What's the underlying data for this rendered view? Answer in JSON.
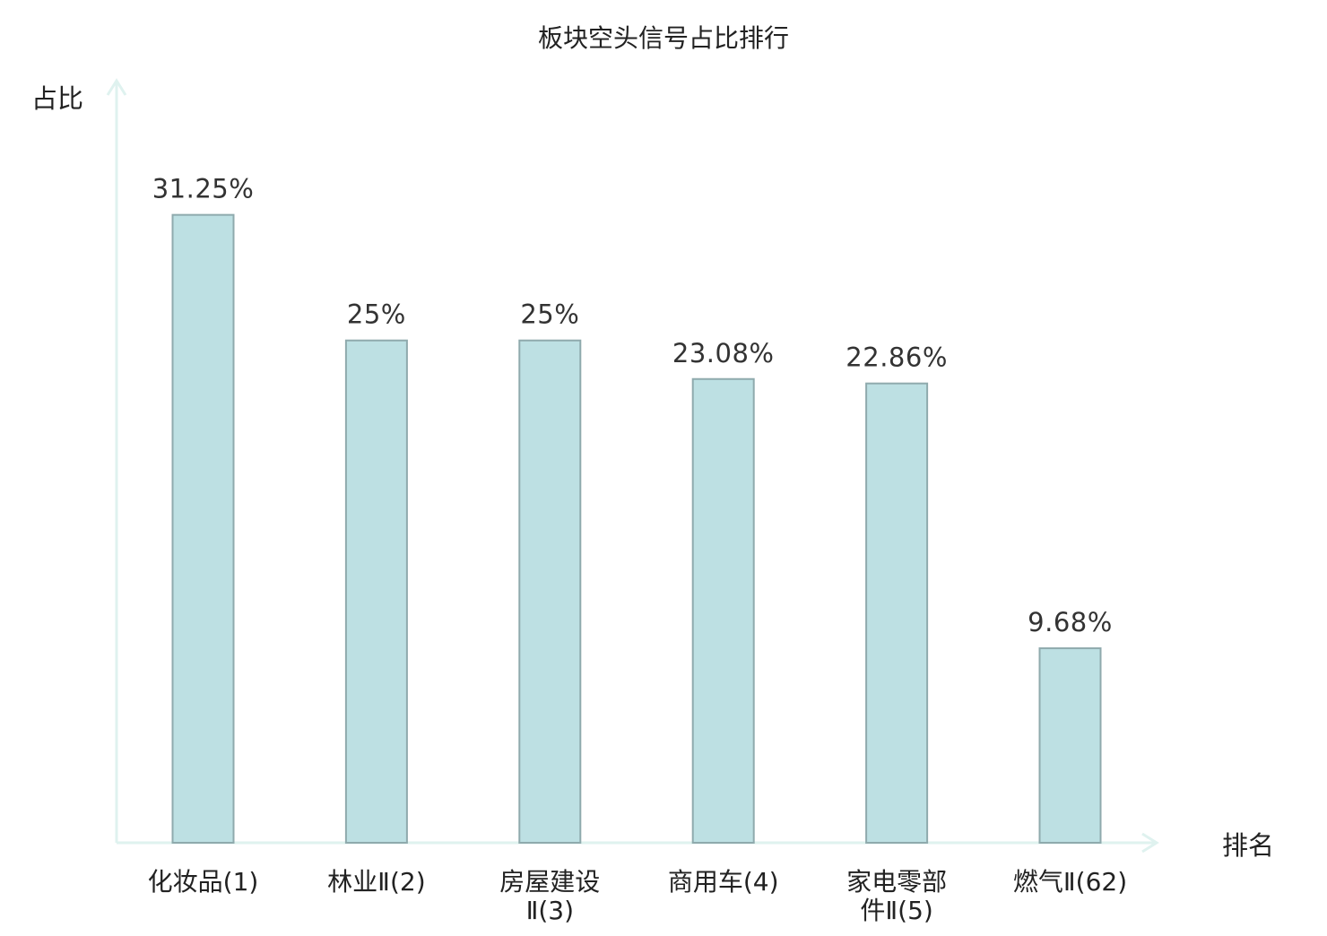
{
  "chart_data": {
    "type": "bar",
    "title": "板块空头信号占比排行",
    "ylabel": "占比",
    "xlabel": "排名",
    "unit": "%",
    "ylim": [
      0,
      36.5
    ],
    "grid": false,
    "legend": "none",
    "categories": [
      [
        "化妆品(1)"
      ],
      [
        "林业Ⅱ(2)"
      ],
      [
        "房屋建设",
        "Ⅱ(3)"
      ],
      [
        "商用车(4)"
      ],
      [
        "家电零部",
        "件Ⅱ(5)"
      ],
      [
        "燃气Ⅱ(62)"
      ]
    ],
    "values": [
      31.25,
      25,
      25,
      23.08,
      22.86,
      9.68
    ],
    "value_labels": [
      "31.25%",
      "25%",
      "25%",
      "23.08%",
      "22.86%",
      "9.68%"
    ],
    "highlight_index": 5,
    "colors": {
      "bar_fill": "#bde0e3",
      "bar_stroke": "#8faaad",
      "axis": "#dff2ef",
      "highlight_label": "#e02020",
      "text": "#222222",
      "value_text": "#333333"
    }
  }
}
